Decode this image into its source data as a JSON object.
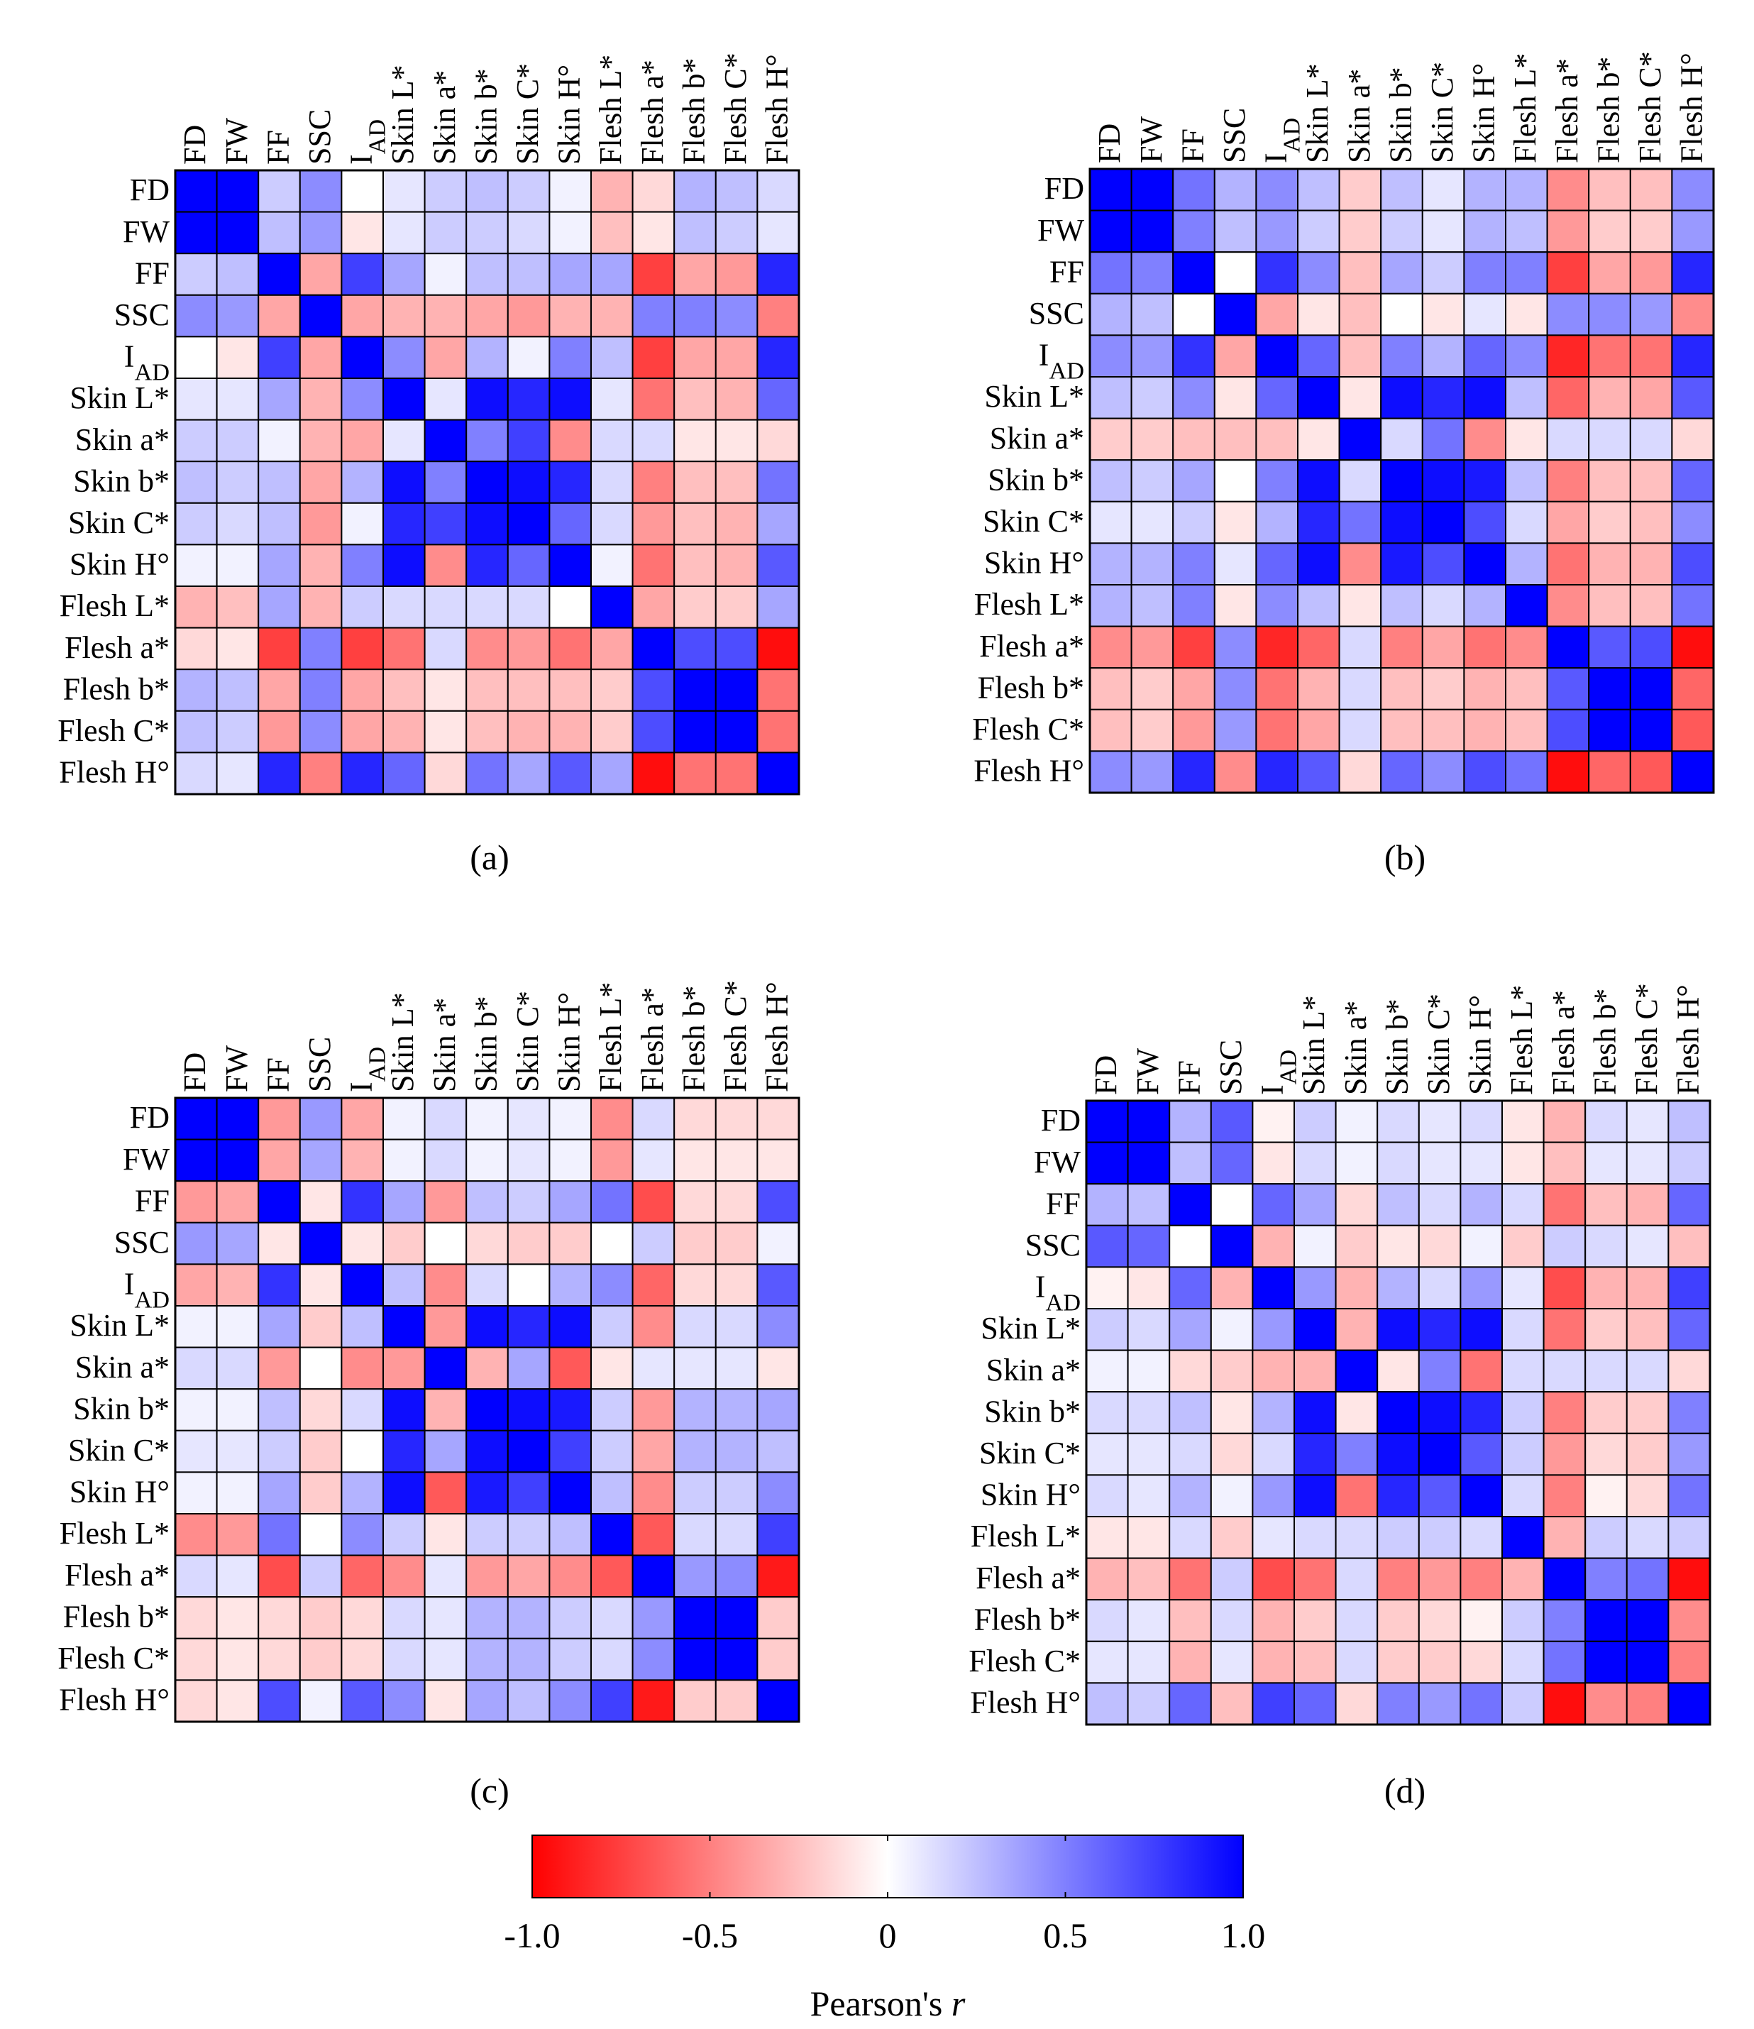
{
  "chart_data": [
    {
      "type": "heatmap",
      "panel_label": "(a)",
      "row_labels": [
        "FD",
        "FW",
        "FF",
        "SSC",
        "I|AD",
        "Skin L*",
        "Skin a*",
        "Skin b*",
        "Skin C*",
        "Skin H°",
        "Flesh L*",
        "Flesh a*",
        "Flesh b*",
        "Flesh C*",
        "Flesh H°"
      ],
      "col_labels": [
        "FD",
        "FW",
        "FF",
        "SSC",
        "I|AD",
        "Skin L*",
        "Skin a*",
        "Skin b*",
        "Skin C*",
        "Skin H°",
        "Flesh L*",
        "Flesh a*",
        "Flesh b*",
        "Flesh C*",
        "Flesh H°"
      ],
      "values": [
        [
          1.0,
          1.0,
          0.2,
          0.45,
          0.0,
          0.1,
          0.2,
          0.25,
          0.2,
          0.05,
          -0.3,
          -0.15,
          0.3,
          0.25,
          0.15
        ],
        [
          1.0,
          1.0,
          0.25,
          0.4,
          -0.1,
          0.1,
          0.2,
          0.2,
          0.15,
          0.05,
          -0.25,
          -0.1,
          0.25,
          0.2,
          0.1
        ],
        [
          0.2,
          0.25,
          1.0,
          -0.35,
          0.75,
          0.35,
          0.05,
          0.25,
          0.25,
          0.35,
          0.35,
          -0.75,
          -0.35,
          -0.4,
          0.85
        ],
        [
          0.45,
          0.4,
          -0.35,
          1.0,
          -0.35,
          -0.3,
          -0.3,
          -0.35,
          -0.4,
          -0.3,
          -0.3,
          0.5,
          0.5,
          0.45,
          -0.5
        ],
        [
          0.0,
          -0.1,
          0.75,
          -0.35,
          1.0,
          0.45,
          -0.35,
          0.3,
          0.05,
          0.5,
          0.25,
          -0.75,
          -0.35,
          -0.35,
          0.85
        ],
        [
          0.1,
          0.1,
          0.35,
          -0.3,
          0.45,
          1.0,
          0.1,
          0.95,
          0.85,
          0.95,
          0.1,
          -0.55,
          -0.25,
          -0.3,
          0.6
        ],
        [
          0.2,
          0.2,
          0.05,
          -0.3,
          -0.35,
          0.1,
          1.0,
          0.5,
          0.75,
          -0.45,
          0.15,
          0.15,
          -0.1,
          -0.1,
          -0.15
        ],
        [
          0.25,
          0.2,
          0.25,
          -0.35,
          0.3,
          0.95,
          0.5,
          1.0,
          0.95,
          0.85,
          0.15,
          -0.5,
          -0.25,
          -0.25,
          0.55
        ],
        [
          0.2,
          0.15,
          0.25,
          -0.4,
          0.05,
          0.85,
          0.75,
          0.95,
          1.0,
          0.6,
          0.15,
          -0.4,
          -0.25,
          -0.3,
          0.35
        ],
        [
          0.05,
          0.05,
          0.35,
          -0.3,
          0.5,
          0.95,
          -0.45,
          0.85,
          0.6,
          1.0,
          0.05,
          -0.55,
          -0.25,
          -0.3,
          0.65
        ],
        [
          -0.3,
          -0.25,
          0.35,
          -0.3,
          0.2,
          0.15,
          0.15,
          0.15,
          0.15,
          0.0,
          1.0,
          -0.35,
          -0.2,
          -0.2,
          0.35
        ],
        [
          -0.15,
          -0.1,
          -0.75,
          0.5,
          -0.75,
          -0.55,
          0.15,
          -0.45,
          -0.4,
          -0.55,
          -0.35,
          1.0,
          0.7,
          0.7,
          -0.95
        ],
        [
          0.3,
          0.25,
          -0.35,
          0.5,
          -0.35,
          -0.25,
          -0.1,
          -0.25,
          -0.25,
          -0.25,
          -0.2,
          0.7,
          1.0,
          1.0,
          -0.55
        ],
        [
          0.25,
          0.2,
          -0.4,
          0.45,
          -0.35,
          -0.3,
          -0.1,
          -0.25,
          -0.3,
          -0.3,
          -0.2,
          0.7,
          1.0,
          1.0,
          -0.55
        ],
        [
          0.15,
          0.1,
          0.85,
          -0.5,
          0.85,
          0.6,
          -0.15,
          0.55,
          0.35,
          0.65,
          0.35,
          -0.95,
          -0.55,
          -0.55,
          1.0
        ]
      ]
    },
    {
      "type": "heatmap",
      "panel_label": "(b)",
      "row_labels": [
        "FD",
        "FW",
        "FF",
        "SSC",
        "I|AD",
        "Skin L*",
        "Skin a*",
        "Skin b*",
        "Skin C*",
        "Skin H°",
        "Flesh L*",
        "Flesh a*",
        "Flesh b*",
        "Flesh C*",
        "Flesh H°"
      ],
      "col_labels": [
        "FD",
        "FW",
        "FF",
        "SSC",
        "I|AD",
        "Skin L*",
        "Skin a*",
        "Skin b*",
        "Skin C*",
        "Skin H°",
        "Flesh L*",
        "Flesh a*",
        "Flesh b*",
        "Flesh C*",
        "Flesh H°"
      ],
      "values": [
        [
          1.0,
          1.0,
          0.55,
          0.3,
          0.45,
          0.25,
          -0.2,
          0.25,
          0.1,
          0.3,
          0.3,
          -0.45,
          -0.25,
          -0.25,
          0.45
        ],
        [
          1.0,
          1.0,
          0.5,
          0.25,
          0.4,
          0.2,
          -0.2,
          0.2,
          0.1,
          0.3,
          0.25,
          -0.4,
          -0.2,
          -0.2,
          0.4
        ],
        [
          0.55,
          0.5,
          1.0,
          0.0,
          0.8,
          0.45,
          -0.25,
          0.35,
          0.2,
          0.5,
          0.5,
          -0.75,
          -0.35,
          -0.4,
          0.85
        ],
        [
          0.3,
          0.25,
          0.0,
          1.0,
          -0.35,
          -0.1,
          -0.25,
          0.0,
          -0.1,
          0.1,
          -0.1,
          0.45,
          0.45,
          0.4,
          -0.45
        ],
        [
          0.45,
          0.4,
          0.8,
          -0.35,
          1.0,
          0.6,
          -0.25,
          0.5,
          0.3,
          0.6,
          0.45,
          -0.85,
          -0.55,
          -0.55,
          0.85
        ],
        [
          0.25,
          0.2,
          0.45,
          -0.1,
          0.6,
          1.0,
          -0.1,
          0.95,
          0.85,
          0.95,
          0.25,
          -0.6,
          -0.3,
          -0.35,
          0.65
        ],
        [
          -0.2,
          -0.2,
          -0.25,
          -0.25,
          -0.25,
          -0.1,
          1.0,
          0.15,
          0.55,
          -0.45,
          -0.1,
          0.15,
          0.15,
          0.15,
          -0.15
        ],
        [
          0.25,
          0.2,
          0.35,
          0.0,
          0.5,
          0.95,
          0.15,
          1.0,
          0.95,
          0.9,
          0.25,
          -0.5,
          -0.25,
          -0.25,
          0.6
        ],
        [
          0.1,
          0.1,
          0.2,
          -0.1,
          0.3,
          0.85,
          0.55,
          0.95,
          1.0,
          0.7,
          0.15,
          -0.35,
          -0.2,
          -0.25,
          0.45
        ],
        [
          0.3,
          0.3,
          0.5,
          0.1,
          0.6,
          0.95,
          -0.45,
          0.9,
          0.7,
          1.0,
          0.3,
          -0.55,
          -0.3,
          -0.3,
          0.7
        ],
        [
          0.3,
          0.25,
          0.5,
          -0.1,
          0.45,
          0.25,
          -0.1,
          0.25,
          0.15,
          0.3,
          1.0,
          -0.45,
          -0.25,
          -0.25,
          0.55
        ],
        [
          -0.45,
          -0.4,
          -0.75,
          0.45,
          -0.85,
          -0.6,
          0.15,
          -0.5,
          -0.35,
          -0.55,
          -0.45,
          1.0,
          0.65,
          0.7,
          -0.95
        ],
        [
          -0.25,
          -0.2,
          -0.35,
          0.45,
          -0.55,
          -0.3,
          0.15,
          -0.25,
          -0.2,
          -0.3,
          -0.25,
          0.65,
          1.0,
          1.0,
          -0.6
        ],
        [
          -0.25,
          -0.2,
          -0.4,
          0.4,
          -0.55,
          -0.35,
          0.15,
          -0.25,
          -0.25,
          -0.3,
          -0.25,
          0.7,
          1.0,
          1.0,
          -0.65
        ],
        [
          0.45,
          0.4,
          0.85,
          -0.45,
          0.85,
          0.65,
          -0.15,
          0.6,
          0.45,
          0.7,
          0.55,
          -0.95,
          -0.6,
          -0.65,
          1.0
        ]
      ]
    },
    {
      "type": "heatmap",
      "panel_label": "(c)",
      "row_labels": [
        "FD",
        "FW",
        "FF",
        "SSC",
        "I|AD",
        "Skin L*",
        "Skin a*",
        "Skin b*",
        "Skin C*",
        "Skin H°",
        "Flesh L*",
        "Flesh a*",
        "Flesh b*",
        "Flesh C*",
        "Flesh H°"
      ],
      "col_labels": [
        "FD",
        "FW",
        "FF",
        "SSC",
        "I|AD",
        "Skin L*",
        "Skin a*",
        "Skin b*",
        "Skin C*",
        "Skin H°",
        "Flesh L*",
        "Flesh a*",
        "Flesh b*",
        "Flesh C*",
        "Flesh H°"
      ],
      "values": [
        [
          1.0,
          1.0,
          -0.4,
          0.4,
          -0.35,
          0.05,
          0.15,
          0.05,
          0.1,
          0.05,
          -0.45,
          0.15,
          -0.15,
          -0.15,
          -0.15
        ],
        [
          1.0,
          1.0,
          -0.35,
          0.35,
          -0.3,
          0.05,
          0.15,
          0.05,
          0.1,
          0.05,
          -0.4,
          0.1,
          -0.1,
          -0.1,
          -0.1
        ],
        [
          -0.4,
          -0.35,
          1.0,
          -0.1,
          0.8,
          0.35,
          -0.4,
          0.25,
          0.2,
          0.35,
          0.55,
          -0.7,
          -0.15,
          -0.15,
          0.7
        ],
        [
          0.4,
          0.35,
          -0.1,
          1.0,
          -0.1,
          -0.2,
          0.0,
          -0.15,
          -0.2,
          -0.2,
          0.0,
          0.2,
          -0.2,
          -0.2,
          0.05
        ],
        [
          -0.35,
          -0.3,
          0.8,
          -0.1,
          1.0,
          0.25,
          -0.45,
          0.15,
          0.0,
          0.3,
          0.45,
          -0.6,
          -0.15,
          -0.15,
          0.65
        ],
        [
          0.05,
          0.05,
          0.35,
          -0.2,
          0.25,
          1.0,
          -0.4,
          0.95,
          0.85,
          0.95,
          0.2,
          -0.45,
          0.15,
          0.15,
          0.45
        ],
        [
          0.15,
          0.15,
          -0.4,
          0.0,
          -0.45,
          -0.4,
          1.0,
          -0.3,
          0.35,
          -0.65,
          -0.1,
          0.1,
          0.1,
          0.1,
          -0.1
        ],
        [
          0.05,
          0.05,
          0.25,
          -0.15,
          0.15,
          0.95,
          -0.3,
          1.0,
          0.95,
          0.9,
          0.2,
          -0.4,
          0.3,
          0.3,
          0.35
        ],
        [
          0.1,
          0.1,
          0.2,
          -0.2,
          0.0,
          0.85,
          0.35,
          0.95,
          1.0,
          0.75,
          0.2,
          -0.35,
          0.3,
          0.3,
          0.25
        ],
        [
          0.05,
          0.05,
          0.35,
          -0.2,
          0.3,
          0.95,
          -0.65,
          0.9,
          0.75,
          1.0,
          0.25,
          -0.45,
          0.2,
          0.2,
          0.45
        ],
        [
          -0.45,
          -0.4,
          0.55,
          0.0,
          0.45,
          0.2,
          -0.1,
          0.2,
          0.2,
          0.25,
          1.0,
          -0.65,
          0.15,
          0.15,
          0.75
        ],
        [
          0.15,
          0.1,
          -0.7,
          0.2,
          -0.6,
          -0.45,
          0.1,
          -0.4,
          -0.35,
          -0.45,
          -0.65,
          1.0,
          0.4,
          0.45,
          -0.9
        ],
        [
          -0.15,
          -0.1,
          -0.15,
          -0.2,
          -0.15,
          0.15,
          0.1,
          0.3,
          0.3,
          0.2,
          0.15,
          0.4,
          1.0,
          1.0,
          -0.2
        ],
        [
          -0.15,
          -0.1,
          -0.15,
          -0.2,
          -0.15,
          0.15,
          0.1,
          0.3,
          0.3,
          0.2,
          0.15,
          0.45,
          1.0,
          1.0,
          -0.2
        ],
        [
          -0.15,
          -0.1,
          0.7,
          0.05,
          0.65,
          0.45,
          -0.1,
          0.35,
          0.25,
          0.45,
          0.75,
          -0.9,
          -0.2,
          -0.2,
          1.0
        ]
      ]
    },
    {
      "type": "heatmap",
      "panel_label": "(d)",
      "row_labels": [
        "FD",
        "FW",
        "FF",
        "SSC",
        "I|AD",
        "Skin L*",
        "Skin a*",
        "Skin b*",
        "Skin C*",
        "Skin H°",
        "Flesh L*",
        "Flesh a*",
        "Flesh b*",
        "Flesh C*",
        "Flesh H°"
      ],
      "col_labels": [
        "FD",
        "FW",
        "FF",
        "SSC",
        "I|AD",
        "Skin L*",
        "Skin a*",
        "Skin b*",
        "Skin C*",
        "Skin H°",
        "Flesh L*",
        "Flesh a*",
        "Flesh b*",
        "Flesh C*",
        "Flesh H°"
      ],
      "values": [
        [
          1.0,
          1.0,
          0.3,
          0.65,
          -0.05,
          0.2,
          0.05,
          0.15,
          0.1,
          0.15,
          -0.1,
          -0.3,
          0.15,
          0.1,
          0.25
        ],
        [
          1.0,
          1.0,
          0.25,
          0.6,
          -0.1,
          0.15,
          0.05,
          0.15,
          0.1,
          0.1,
          -0.1,
          -0.25,
          0.1,
          0.1,
          0.2
        ],
        [
          0.3,
          0.25,
          1.0,
          0.0,
          0.6,
          0.35,
          -0.15,
          0.25,
          0.15,
          0.3,
          0.15,
          -0.55,
          -0.25,
          -0.3,
          0.6
        ],
        [
          0.65,
          0.6,
          0.0,
          1.0,
          -0.3,
          0.05,
          -0.2,
          -0.1,
          -0.15,
          0.05,
          -0.2,
          0.2,
          0.15,
          0.1,
          -0.25
        ],
        [
          -0.05,
          -0.1,
          0.6,
          -0.3,
          1.0,
          0.4,
          -0.3,
          0.3,
          0.15,
          0.4,
          0.1,
          -0.7,
          -0.3,
          -0.3,
          0.75
        ],
        [
          0.2,
          0.15,
          0.35,
          0.05,
          0.4,
          1.0,
          -0.3,
          0.95,
          0.85,
          0.95,
          0.15,
          -0.55,
          -0.2,
          -0.25,
          0.6
        ],
        [
          0.05,
          0.05,
          -0.15,
          -0.2,
          -0.3,
          -0.3,
          1.0,
          -0.1,
          0.5,
          -0.55,
          0.15,
          0.15,
          0.15,
          0.15,
          -0.15
        ],
        [
          0.15,
          0.15,
          0.25,
          -0.1,
          0.3,
          0.95,
          -0.1,
          1.0,
          0.95,
          0.85,
          0.2,
          -0.5,
          -0.2,
          -0.2,
          0.5
        ],
        [
          0.1,
          0.1,
          0.15,
          -0.15,
          0.15,
          0.85,
          0.5,
          0.95,
          1.0,
          0.65,
          0.2,
          -0.4,
          -0.15,
          -0.2,
          0.4
        ],
        [
          0.15,
          0.1,
          0.3,
          0.05,
          0.4,
          0.95,
          -0.55,
          0.85,
          0.65,
          1.0,
          0.15,
          -0.5,
          -0.05,
          -0.15,
          0.55
        ],
        [
          -0.1,
          -0.1,
          0.15,
          -0.2,
          0.1,
          0.15,
          0.15,
          0.2,
          0.2,
          0.15,
          1.0,
          -0.3,
          0.2,
          0.15,
          0.2
        ],
        [
          -0.3,
          -0.25,
          -0.55,
          0.2,
          -0.7,
          -0.55,
          0.15,
          -0.5,
          -0.4,
          -0.5,
          -0.3,
          1.0,
          0.5,
          0.55,
          -0.95
        ],
        [
          0.15,
          0.1,
          -0.25,
          0.15,
          -0.3,
          -0.2,
          0.15,
          -0.2,
          -0.15,
          -0.05,
          0.2,
          0.5,
          1.0,
          1.0,
          -0.45
        ],
        [
          0.1,
          0.1,
          -0.3,
          0.1,
          -0.3,
          -0.25,
          0.15,
          -0.2,
          -0.2,
          -0.15,
          0.15,
          0.55,
          1.0,
          1.0,
          -0.5
        ],
        [
          0.25,
          0.2,
          0.6,
          -0.25,
          0.75,
          0.6,
          -0.15,
          0.5,
          0.4,
          0.55,
          0.2,
          -0.95,
          -0.45,
          -0.5,
          1.0
        ]
      ]
    }
  ],
  "colorbar": {
    "title": "Pearson's ",
    "title_italic": "r",
    "tick_labels": [
      "-1.0",
      "-0.5",
      "0",
      "0.5",
      "1.0"
    ],
    "ticks": [
      -1.0,
      -0.5,
      0,
      0.5,
      1.0
    ],
    "range": [
      -1.0,
      1.0
    ],
    "colors": {
      "negative": "#ff0000",
      "zero": "#ffffff",
      "positive": "#0000ff"
    }
  }
}
